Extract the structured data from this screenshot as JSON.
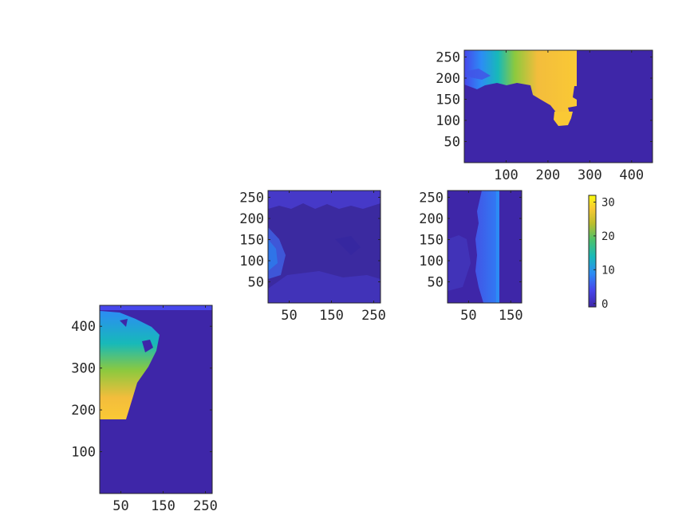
{
  "chart_data": [
    {
      "type": "heatmap",
      "name": "panel-top-right",
      "xlim": [
        0,
        450
      ],
      "ylim": [
        0,
        266
      ],
      "xticks": [
        100,
        200,
        300,
        400
      ],
      "yticks": [
        50,
        100,
        150,
        200,
        250
      ],
      "xtick_labels": [
        "100",
        "200",
        "300",
        "400"
      ],
      "ytick_labels": [
        "50",
        "100",
        "150",
        "200",
        "250"
      ],
      "pattern": "T",
      "value_range": [
        0,
        32
      ]
    },
    {
      "type": "heatmap",
      "name": "panel-middle-left",
      "xlim": [
        0,
        266
      ],
      "ylim": [
        0,
        266
      ],
      "xticks": [
        50,
        150,
        250
      ],
      "yticks": [
        50,
        100,
        150,
        200,
        250
      ],
      "xtick_labels": [
        "50",
        "150",
        "250"
      ],
      "ytick_labels": [
        "50",
        "100",
        "150",
        "200",
        "250"
      ],
      "pattern": "W",
      "value_range": [
        0,
        4
      ]
    },
    {
      "type": "heatmap",
      "name": "panel-middle-right",
      "xlim": [
        0,
        176
      ],
      "ylim": [
        0,
        266
      ],
      "xticks": [
        50,
        150
      ],
      "yticks": [
        50,
        100,
        150,
        200,
        250
      ],
      "xtick_labels": [
        "50",
        "150"
      ],
      "ytick_labels": [
        "50",
        "100",
        "150",
        "200",
        "250"
      ],
      "pattern": "S",
      "value_range": [
        0,
        8
      ]
    },
    {
      "type": "heatmap",
      "name": "panel-bottom-left",
      "xlim": [
        0,
        266
      ],
      "ylim": [
        0,
        450
      ],
      "xticks": [
        50,
        150,
        250
      ],
      "yticks": [
        100,
        200,
        300,
        400
      ],
      "xtick_labels": [
        "50",
        "150",
        "250"
      ],
      "ytick_labels": [
        "100",
        "200",
        "300",
        "400"
      ],
      "pattern": "E",
      "value_range": [
        0,
        32
      ]
    }
  ],
  "colorbar": {
    "limits": [
      -1,
      32
    ],
    "ticks": [
      0,
      10,
      20,
      30
    ],
    "tick_labels": [
      "0",
      "10",
      "20",
      "30"
    ],
    "colormap": "parula",
    "colors": {
      "low": "#3e26a8",
      "mid_low": "#2c8cf5",
      "mid": "#17b9b9",
      "mid_high": "#8dc93e",
      "high": "#f8c934",
      "top": "#f9fb0e"
    }
  }
}
